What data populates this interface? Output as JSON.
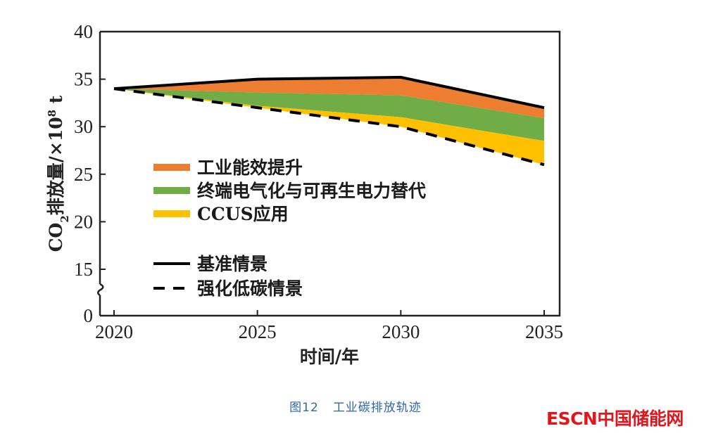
{
  "chart_data": {
    "type": "area",
    "title": "",
    "xlabel": "时间/年",
    "ylabel": "CO₂排放量/×10⁸ t",
    "ylabel_parts": {
      "main1": "CO",
      "sub": "2",
      "main2": "排放量/×10",
      "sup": "8",
      "main3": " t"
    },
    "x": [
      2020,
      2025,
      2030,
      2035
    ],
    "xlim": [
      2019.5,
      2035.5
    ],
    "ylim": [
      0,
      40
    ],
    "axis_break": "between 0 and 15",
    "xticks": [
      "2020",
      "2025",
      "2030",
      "2035"
    ],
    "yticks": [
      "0",
      "15",
      "20",
      "25",
      "30",
      "35",
      "40"
    ],
    "ytick_values": [
      0,
      15,
      20,
      25,
      30,
      35,
      40
    ],
    "lines": [
      {
        "name": "基准情景",
        "style": "solid",
        "color": "#000000",
        "values": [
          34.0,
          35.0,
          35.2,
          32.0
        ]
      },
      {
        "name": "强化低碳情景",
        "style": "dashed",
        "color": "#000000",
        "values": [
          34.0,
          32.0,
          30.0,
          26.0
        ]
      }
    ],
    "boundaries": {
      "orange_green": [
        34.0,
        33.6,
        33.3,
        30.9
      ],
      "green_yellow": [
        34.0,
        32.2,
        31.0,
        28.5
      ]
    },
    "series": [
      {
        "name": "工业能效提升",
        "color": "#ed7d31",
        "from": "orange_green",
        "to": "基准情景"
      },
      {
        "name": "终端电气化与可再生电力替代",
        "color": "#70ad47",
        "from": "green_yellow",
        "to": "orange_green"
      },
      {
        "name": "CCUS应用",
        "color": "#ffc000",
        "from": "强化低碳情景",
        "to": "green_yellow"
      }
    ],
    "legend_placement": "center-left",
    "grid": false
  },
  "caption": {
    "figure_no": "图12",
    "text": "工业碳排放轨迹"
  },
  "logo": {
    "text": "ESCN中国储能网"
  }
}
